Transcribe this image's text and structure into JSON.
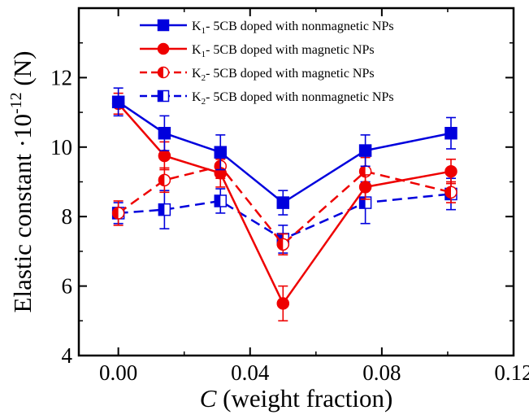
{
  "chart_data": {
    "type": "line",
    "xlabel": {
      "italic": "C",
      "rest": " (weight fraction)"
    },
    "ylabel": {
      "main": "Elastic constant ·10",
      "sup": "-12",
      "unit": " (N)"
    },
    "xlim": [
      -0.012,
      0.12
    ],
    "ylim": [
      4,
      14
    ],
    "xticks": [
      0.0,
      0.04,
      0.08,
      0.12
    ],
    "xtick_labels": [
      "0.00",
      "0.04",
      "0.08",
      "0.12"
    ],
    "yticks": [
      4,
      6,
      8,
      10,
      12
    ],
    "ytick_labels": [
      "4",
      "6",
      "8",
      "10",
      "12"
    ],
    "legend_position": "top-right",
    "series": [
      {
        "name": "K1- 5CB doped with nonmagnetic NPs",
        "name_parts": [
          "K",
          "1",
          "- 5CB doped with nonmagnetic NPs"
        ],
        "color": "#0000dd",
        "dash": "solid",
        "marker": "square-filled",
        "x": [
          0.0,
          0.014,
          0.031,
          0.05,
          0.075,
          0.101
        ],
        "y": [
          11.3,
          10.4,
          9.85,
          8.4,
          9.9,
          10.4
        ],
        "yerr": [
          0.4,
          0.5,
          0.5,
          0.35,
          0.45,
          0.45
        ]
      },
      {
        "name": "K1- 5CB doped with magnetic NPs",
        "name_parts": [
          "K",
          "1",
          "- 5CB doped with magnetic NPs"
        ],
        "color": "#ee0000",
        "dash": "solid",
        "marker": "circle-filled",
        "x": [
          0.0,
          0.014,
          0.031,
          0.05,
          0.075,
          0.101
        ],
        "y": [
          11.25,
          9.75,
          9.25,
          5.5,
          8.85,
          9.3
        ],
        "yerr": [
          0.3,
          0.4,
          0.4,
          0.5,
          0.35,
          0.35
        ]
      },
      {
        "name": "K2- 5CB doped with magnetic NPs",
        "name_parts": [
          "K",
          "2",
          "- 5CB doped with magnetic NPs"
        ],
        "color": "#ee0000",
        "dash": "dashed",
        "marker": "circle-half",
        "x": [
          0.0,
          0.014,
          0.031,
          0.05,
          0.075,
          0.101
        ],
        "y": [
          8.1,
          9.05,
          9.45,
          7.2,
          9.3,
          8.7
        ],
        "yerr": [
          0.35,
          0.35,
          0.35,
          0.3,
          0.4,
          0.3
        ]
      },
      {
        "name": "K2- 5CB doped with nonmagnetic NPs",
        "name_parts": [
          "K",
          "2",
          "- 5CB doped with nonmagnetic NPs"
        ],
        "color": "#0000dd",
        "dash": "dashed",
        "marker": "square-half",
        "x": [
          0.0,
          0.014,
          0.031,
          0.05,
          0.075,
          0.101
        ],
        "y": [
          8.1,
          8.2,
          8.45,
          7.35,
          8.4,
          8.65
        ],
        "yerr": [
          0.3,
          0.55,
          0.35,
          0.4,
          0.6,
          0.45
        ]
      }
    ]
  }
}
